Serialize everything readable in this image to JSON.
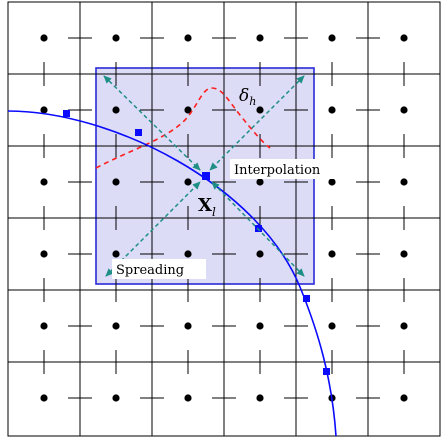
{
  "labels": {
    "kernel_width": "δ",
    "kernel_width_sub": "h",
    "point": "X",
    "point_sub": "l",
    "interpolation": "Interpolation",
    "spreading": "Spreading"
  },
  "colors": {
    "grid": "#000000",
    "nodes": "#000000",
    "support_fill": "#dcdcf7",
    "support_stroke": "#2a2ad6",
    "curve": "#0a0aff",
    "markers": "#0a0aff",
    "kernel": "#ff2020",
    "arrows": "#1f8f86"
  }
}
